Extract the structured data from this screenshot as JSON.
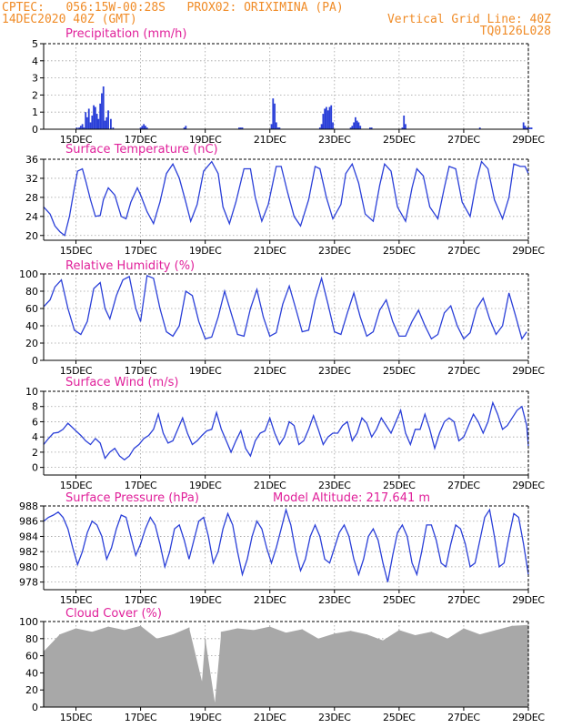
{
  "header": {
    "line1_left": "CPTEC:   056:15W-00:28S   PROX02: ORIXIMINA (PA)",
    "line2_left": "14DEC2020 40Z (GMT)",
    "line2_right": "Vertical Grid Line: 40Z",
    "line3_right": "TQ0126L028"
  },
  "colors": {
    "header": "#f08c28",
    "panel_title": "#e0209a",
    "line": "#2a3fd8",
    "bar": "#2a3fd8",
    "cloud": "#a8a8a8",
    "grid": "#a0a0a0",
    "axis": "#000000"
  },
  "chart_data": [
    {
      "id": "precip",
      "type": "bar",
      "title": "Precipitation (mm/h)",
      "ylim": [
        0,
        5
      ],
      "yticks": [
        0,
        1,
        2,
        3,
        4,
        5
      ],
      "xlim": [
        0,
        15
      ],
      "xticks": [
        1,
        3,
        5,
        7,
        9,
        11,
        13,
        15
      ],
      "xtick_labels": [
        "15DEC",
        "17DEC",
        "19DEC",
        "21DEC",
        "23DEC",
        "25DEC",
        "27DEC",
        "29DEC"
      ],
      "grid": true,
      "x": [
        1.03,
        1.1,
        1.15,
        1.2,
        1.25,
        1.3,
        1.35,
        1.4,
        1.45,
        1.5,
        1.55,
        1.6,
        1.65,
        1.7,
        1.75,
        1.8,
        1.85,
        1.9,
        1.95,
        2.0,
        2.08,
        2.15,
        3.0,
        3.05,
        3.1,
        3.15,
        3.2,
        4.35,
        4.4,
        6.05,
        6.1,
        6.15,
        7.05,
        7.1,
        7.15,
        7.2,
        7.25,
        7.3,
        8.55,
        8.6,
        8.65,
        8.7,
        8.75,
        8.8,
        8.85,
        8.9,
        8.95,
        9.5,
        9.55,
        9.6,
        9.65,
        9.7,
        9.75,
        9.8,
        10.1,
        10.15,
        11.1,
        11.15,
        11.2,
        13.5,
        14.85,
        14.9,
        14.95,
        15.0,
        15.05,
        15.1
      ],
      "values": [
        0.1,
        0.1,
        0.2,
        0.3,
        0.1,
        1.0,
        0.7,
        1.2,
        0.4,
        0.8,
        1.4,
        1.3,
        0.9,
        0.6,
        1.5,
        2.1,
        2.5,
        0.5,
        0.7,
        1.1,
        0.6,
        0.1,
        0.1,
        0.2,
        0.3,
        0.2,
        0.1,
        0.1,
        0.2,
        0.1,
        0.1,
        0.1,
        0.3,
        1.8,
        1.5,
        0.4,
        0.1,
        0.1,
        0.1,
        0.3,
        0.9,
        1.2,
        1.3,
        1.1,
        1.3,
        1.4,
        0.4,
        0.1,
        0.2,
        0.4,
        0.7,
        0.5,
        0.4,
        0.2,
        0.1,
        0.1,
        0.1,
        0.8,
        0.3,
        0.1,
        0.4,
        0.2,
        0.1,
        0.1,
        0.1,
        0.1
      ]
    },
    {
      "id": "temp",
      "type": "line",
      "title": "Surface Temperature (nC)",
      "ylim": [
        19,
        36
      ],
      "yticks": [
        20,
        24,
        28,
        32,
        36
      ],
      "xlim": [
        0,
        15
      ],
      "xticks": [
        1,
        3,
        5,
        7,
        9,
        11,
        13,
        15
      ],
      "xtick_labels": [
        "15DEC",
        "17DEC",
        "19DEC",
        "21DEC",
        "23DEC",
        "25DEC",
        "27DEC",
        "29DEC"
      ],
      "grid": true,
      "x": [
        0.0,
        0.2,
        0.35,
        0.5,
        0.65,
        0.8,
        0.95,
        1.05,
        1.2,
        1.3,
        1.45,
        1.6,
        1.75,
        1.85,
        2.0,
        2.2,
        2.4,
        2.55,
        2.7,
        2.9,
        3.0,
        3.2,
        3.4,
        3.6,
        3.8,
        4.0,
        4.2,
        4.4,
        4.55,
        4.75,
        4.95,
        5.2,
        5.4,
        5.55,
        5.75,
        5.95,
        6.2,
        6.4,
        6.55,
        6.75,
        6.95,
        7.2,
        7.35,
        7.55,
        7.75,
        7.95,
        8.2,
        8.4,
        8.55,
        8.75,
        8.95,
        9.2,
        9.35,
        9.55,
        9.75,
        9.95,
        10.2,
        10.4,
        10.55,
        10.75,
        10.95,
        11.2,
        11.4,
        11.55,
        11.75,
        11.95,
        12.2,
        12.4,
        12.55,
        12.75,
        12.95,
        13.2,
        13.4,
        13.55,
        13.75,
        13.95,
        14.2,
        14.4,
        14.55,
        14.75,
        14.9,
        15.0
      ],
      "values": [
        26.0,
        24.5,
        22.0,
        20.8,
        20.0,
        24.0,
        30.0,
        33.5,
        34.0,
        31.5,
        27.5,
        24.0,
        24.2,
        27.5,
        30.0,
        28.5,
        24.0,
        23.5,
        27.0,
        30.0,
        28.5,
        25.0,
        22.5,
        27.0,
        33.0,
        35.0,
        32.0,
        27.0,
        23.0,
        26.5,
        33.5,
        35.5,
        33.0,
        26.0,
        22.5,
        27.0,
        34.0,
        34.0,
        28.0,
        23.0,
        26.5,
        34.5,
        34.5,
        29.0,
        24.0,
        22.0,
        27.5,
        34.5,
        34.0,
        28.0,
        23.5,
        26.5,
        33.0,
        35.0,
        31.0,
        24.5,
        23.0,
        30.5,
        35.0,
        33.5,
        26.0,
        23.0,
        30.0,
        34.0,
        32.5,
        26.0,
        23.5,
        30.0,
        34.5,
        34.0,
        27.0,
        24.0,
        31.5,
        35.5,
        34.0,
        27.5,
        23.5,
        28.0,
        35.0,
        34.5,
        34.5,
        33.0
      ]
    },
    {
      "id": "rh",
      "type": "line",
      "title": "Relative Humidity (%)",
      "ylim": [
        0,
        100
      ],
      "yticks": [
        0,
        20,
        40,
        60,
        80,
        100
      ],
      "xlim": [
        0,
        15
      ],
      "xticks": [
        1,
        3,
        5,
        7,
        9,
        11,
        13,
        15
      ],
      "xtick_labels": [
        "15DEC",
        "17DEC",
        "19DEC",
        "21DEC",
        "23DEC",
        "25DEC",
        "27DEC",
        "29DEC"
      ],
      "grid": true,
      "x": [
        0.0,
        0.2,
        0.35,
        0.55,
        0.75,
        0.95,
        1.15,
        1.35,
        1.55,
        1.75,
        1.9,
        2.05,
        2.25,
        2.45,
        2.65,
        2.85,
        3.0,
        3.2,
        3.4,
        3.6,
        3.8,
        4.0,
        4.2,
        4.4,
        4.6,
        4.8,
        5.0,
        5.2,
        5.4,
        5.6,
        5.8,
        6.0,
        6.2,
        6.4,
        6.6,
        6.8,
        7.0,
        7.2,
        7.4,
        7.6,
        7.8,
        8.0,
        8.2,
        8.4,
        8.6,
        8.8,
        9.0,
        9.2,
        9.4,
        9.6,
        9.8,
        10.0,
        10.2,
        10.4,
        10.6,
        10.8,
        11.0,
        11.2,
        11.4,
        11.6,
        11.8,
        12.0,
        12.2,
        12.4,
        12.6,
        12.8,
        13.0,
        13.2,
        13.4,
        13.6,
        13.8,
        14.0,
        14.2,
        14.4,
        14.6,
        14.8,
        14.95
      ],
      "values": [
        62.0,
        70.0,
        85.0,
        93.0,
        60.0,
        35.0,
        30.0,
        45.0,
        83.0,
        90.0,
        60.0,
        48.0,
        75.0,
        93.0,
        97.0,
        60.0,
        45.0,
        98.0,
        95.0,
        60.0,
        33.0,
        28.0,
        40.0,
        80.0,
        75.0,
        45.0,
        25.0,
        27.0,
        50.0,
        80.0,
        55.0,
        30.0,
        28.0,
        60.0,
        82.0,
        50.0,
        28.0,
        32.0,
        65.0,
        86.0,
        60.0,
        33.0,
        35.0,
        70.0,
        95.0,
        65.0,
        33.0,
        30.0,
        55.0,
        78.0,
        50.0,
        28.0,
        33.0,
        58.0,
        70.0,
        45.0,
        28.0,
        28.0,
        45.0,
        58.0,
        40.0,
        25.0,
        30.0,
        55.0,
        63.0,
        40.0,
        25.0,
        32.0,
        60.0,
        72.0,
        48.0,
        30.0,
        40.0,
        78.0,
        52.0,
        25.0,
        33.0
      ]
    },
    {
      "id": "wind",
      "type": "line",
      "title": "Surface Wind (m/s)",
      "ylim": [
        -1,
        10
      ],
      "yticks": [
        0,
        2,
        4,
        6,
        8,
        10
      ],
      "xlim": [
        0,
        15
      ],
      "xticks": [
        1,
        3,
        5,
        7,
        9,
        11,
        13,
        15
      ],
      "xtick_labels": [
        "15DEC",
        "17DEC",
        "19DEC",
        "21DEC",
        "23DEC",
        "25DEC",
        "27DEC",
        "29DEC"
      ],
      "grid": true,
      "x": [
        0.0,
        0.15,
        0.3,
        0.45,
        0.6,
        0.75,
        0.9,
        1.0,
        1.15,
        1.3,
        1.45,
        1.6,
        1.75,
        1.9,
        2.05,
        2.2,
        2.35,
        2.5,
        2.65,
        2.8,
        2.95,
        3.1,
        3.25,
        3.4,
        3.55,
        3.7,
        3.85,
        4.0,
        4.15,
        4.3,
        4.45,
        4.6,
        4.75,
        4.9,
        5.05,
        5.2,
        5.35,
        5.5,
        5.65,
        5.8,
        5.95,
        6.1,
        6.25,
        6.4,
        6.55,
        6.7,
        6.85,
        7.0,
        7.15,
        7.3,
        7.45,
        7.6,
        7.75,
        7.9,
        8.05,
        8.2,
        8.35,
        8.5,
        8.65,
        8.8,
        8.95,
        9.1,
        9.25,
        9.4,
        9.55,
        9.7,
        9.85,
        10.0,
        10.15,
        10.3,
        10.45,
        10.6,
        10.75,
        10.9,
        11.05,
        11.2,
        11.35,
        11.5,
        11.65,
        11.8,
        11.95,
        12.1,
        12.25,
        12.4,
        12.55,
        12.7,
        12.85,
        13.0,
        13.15,
        13.3,
        13.45,
        13.6,
        13.75,
        13.9,
        14.05,
        14.2,
        14.35,
        14.5,
        14.65,
        14.8,
        14.95,
        15.0
      ],
      "values": [
        3.0,
        3.8,
        4.5,
        4.6,
        5.0,
        5.8,
        5.2,
        4.8,
        4.2,
        3.5,
        3.0,
        3.8,
        3.2,
        1.2,
        2.0,
        2.5,
        1.5,
        1.0,
        1.5,
        2.5,
        3.0,
        3.8,
        4.2,
        5.0,
        7.0,
        4.5,
        3.2,
        3.5,
        5.0,
        6.5,
        4.5,
        3.0,
        3.5,
        4.2,
        4.8,
        5.0,
        7.2,
        5.0,
        3.5,
        2.0,
        3.5,
        4.8,
        2.5,
        1.5,
        3.5,
        4.5,
        4.8,
        6.5,
        4.5,
        3.0,
        4.0,
        6.0,
        5.5,
        3.0,
        3.5,
        5.0,
        6.8,
        5.0,
        3.0,
        4.0,
        4.5,
        4.5,
        5.5,
        6.0,
        3.5,
        4.5,
        6.5,
        5.8,
        4.0,
        5.0,
        6.5,
        5.5,
        4.5,
        6.0,
        7.5,
        4.5,
        3.0,
        5.0,
        5.0,
        7.0,
        5.0,
        2.5,
        4.5,
        6.0,
        6.5,
        6.0,
        3.5,
        4.0,
        5.5,
        7.0,
        6.0,
        4.5,
        6.0,
        8.5,
        7.0,
        5.0,
        5.5,
        6.5,
        7.5,
        8.0,
        5.5,
        2.8
      ]
    },
    {
      "id": "pressure",
      "type": "line",
      "title": "Surface Pressure (hPa)",
      "annotation": "Model Altitude: 217.641 m",
      "ylim": [
        977,
        988
      ],
      "yticks": [
        978,
        980,
        982,
        984,
        986,
        988
      ],
      "xlim": [
        0,
        15
      ],
      "xticks": [
        1,
        3,
        5,
        7,
        9,
        11,
        13,
        15
      ],
      "xtick_labels": [
        "15DEC",
        "17DEC",
        "19DEC",
        "21DEC",
        "23DEC",
        "25DEC",
        "27DEC",
        "29DEC"
      ],
      "grid": true,
      "x": [
        0.0,
        0.15,
        0.3,
        0.45,
        0.6,
        0.75,
        0.9,
        1.05,
        1.2,
        1.35,
        1.5,
        1.65,
        1.8,
        1.95,
        2.1,
        2.25,
        2.4,
        2.55,
        2.7,
        2.85,
        3.0,
        3.15,
        3.3,
        3.45,
        3.6,
        3.75,
        3.9,
        4.05,
        4.2,
        4.35,
        4.5,
        4.65,
        4.8,
        4.95,
        5.1,
        5.25,
        5.4,
        5.55,
        5.7,
        5.85,
        6.0,
        6.15,
        6.3,
        6.45,
        6.6,
        6.75,
        6.9,
        7.05,
        7.2,
        7.35,
        7.5,
        7.65,
        7.8,
        7.95,
        8.1,
        8.25,
        8.4,
        8.55,
        8.7,
        8.85,
        9.0,
        9.15,
        9.3,
        9.45,
        9.6,
        9.75,
        9.9,
        10.05,
        10.2,
        10.35,
        10.5,
        10.65,
        10.8,
        10.95,
        11.1,
        11.25,
        11.4,
        11.55,
        11.7,
        11.85,
        12.0,
        12.15,
        12.3,
        12.45,
        12.6,
        12.75,
        12.9,
        13.05,
        13.2,
        13.35,
        13.5,
        13.65,
        13.8,
        13.95,
        14.1,
        14.25,
        14.4,
        14.55,
        14.7,
        14.85,
        15.0
      ],
      "values": [
        986.0,
        986.5,
        986.8,
        987.2,
        986.5,
        985.0,
        982.5,
        980.3,
        982.0,
        984.5,
        986.0,
        985.5,
        984.0,
        981.0,
        982.5,
        985.0,
        986.8,
        986.5,
        984.0,
        981.5,
        983.0,
        985.0,
        986.5,
        985.5,
        983.0,
        980.0,
        982.0,
        985.0,
        985.5,
        983.5,
        981.0,
        983.5,
        986.0,
        986.5,
        984.0,
        980.5,
        982.0,
        985.0,
        987.0,
        985.5,
        982.0,
        979.0,
        981.0,
        984.0,
        986.0,
        985.0,
        982.5,
        980.5,
        982.5,
        985.0,
        987.5,
        985.5,
        982.0,
        979.5,
        981.0,
        984.0,
        985.5,
        984.0,
        981.0,
        980.5,
        982.5,
        984.5,
        985.5,
        984.0,
        981.0,
        979.0,
        981.0,
        984.0,
        985.0,
        983.5,
        980.5,
        978.0,
        981.5,
        984.5,
        985.5,
        984.0,
        980.5,
        979.0,
        982.0,
        985.5,
        985.5,
        983.5,
        980.5,
        980.0,
        983.0,
        985.5,
        985.0,
        983.0,
        980.0,
        980.5,
        983.5,
        986.5,
        987.5,
        984.0,
        980.0,
        980.5,
        984.0,
        987.0,
        986.5,
        983.0,
        979.0
      ]
    },
    {
      "id": "cloud",
      "type": "bar",
      "title": "Cloud Cover (%)",
      "ylim": [
        0,
        100
      ],
      "yticks": [
        0,
        20,
        40,
        60,
        80,
        100
      ],
      "xlim": [
        0,
        15
      ],
      "xticks": [
        1,
        3,
        5,
        7,
        9,
        11,
        13,
        15
      ],
      "xtick_labels": [
        "15DEC",
        "17DEC",
        "19DEC",
        "21DEC",
        "23DEC",
        "25DEC",
        "27DEC",
        "29DEC"
      ],
      "grid": true,
      "x": [
        0.0,
        0.5,
        1.0,
        1.5,
        2.0,
        2.5,
        3.0,
        3.5,
        4.0,
        4.5,
        4.9,
        5.0,
        5.3,
        5.5,
        6.0,
        6.5,
        7.0,
        7.5,
        8.0,
        8.5,
        9.0,
        9.5,
        10.0,
        10.5,
        11.0,
        11.5,
        12.0,
        12.5,
        13.0,
        13.5,
        14.0,
        14.5,
        15.0
      ],
      "values": [
        65,
        85,
        92,
        88,
        94,
        90,
        95,
        80,
        85,
        93,
        30,
        80,
        5,
        88,
        92,
        90,
        94,
        87,
        91,
        80,
        86,
        89,
        85,
        78,
        90,
        84,
        88,
        80,
        92,
        85,
        90,
        95,
        96
      ]
    }
  ]
}
